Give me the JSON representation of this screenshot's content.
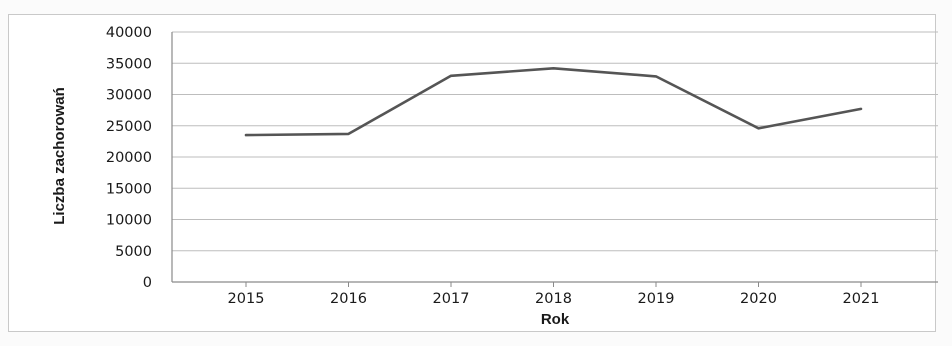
{
  "colors": {
    "line": "#555555",
    "grid": "#bdbdbd",
    "axis": "#8a8a8a"
  },
  "chart_data": {
    "type": "line",
    "title": "",
    "xlabel": "Rok",
    "ylabel": "Liczba zachorowań",
    "x": [
      "2015",
      "2016",
      "2017",
      "2018",
      "2019",
      "2020",
      "2021"
    ],
    "series": [
      {
        "values": [
          23500,
          23700,
          33000,
          34200,
          32900,
          24600,
          27700
        ]
      }
    ],
    "ylim": [
      0,
      40000
    ],
    "yticks": [
      "0",
      "5000",
      "10000",
      "15000",
      "20000",
      "25000",
      "30000",
      "35000",
      "40000"
    ],
    "grid": true,
    "legend": "none"
  }
}
